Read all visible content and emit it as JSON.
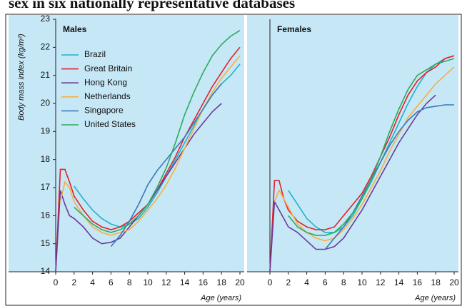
{
  "title": "sex in six nationally representative databases",
  "chart_data": [
    {
      "type": "line",
      "title": "Males",
      "ylabel": "Body mass index (kg/m²)",
      "xlabel": "Age (years)",
      "x": [
        0,
        0.5,
        1,
        1.5,
        2,
        3,
        4,
        5,
        6,
        7,
        8,
        9,
        10,
        11,
        12,
        13,
        14,
        15,
        16,
        17,
        18,
        19,
        20
      ],
      "xlim": [
        0,
        20
      ],
      "xticks": [
        0,
        2,
        4,
        6,
        8,
        10,
        12,
        14,
        16,
        18,
        20
      ],
      "ylim": [
        14,
        23
      ],
      "yticks": [
        14,
        15,
        16,
        17,
        18,
        19,
        20,
        21,
        22,
        23
      ],
      "legend": "upper left",
      "series": [
        {
          "name": "Brazil",
          "color": "#1fb3cc",
          "values": [
            null,
            null,
            null,
            null,
            17.05,
            16.6,
            16.2,
            15.9,
            15.7,
            15.6,
            15.7,
            15.9,
            16.3,
            16.8,
            17.4,
            18.0,
            18.6,
            19.2,
            19.8,
            20.3,
            20.7,
            21.0,
            21.4
          ]
        },
        {
          "name": "Great Britain",
          "color": "#e3202a",
          "values": [
            14,
            17.65,
            17.65,
            17.2,
            16.7,
            16.2,
            15.8,
            15.6,
            15.5,
            15.6,
            15.8,
            16.1,
            16.4,
            16.9,
            17.5,
            18.1,
            18.8,
            19.4,
            20.0,
            20.6,
            21.1,
            21.6,
            22.0
          ]
        },
        {
          "name": "Hong Kong",
          "color": "#6a3a9a",
          "values": [
            14,
            16.9,
            16.4,
            16.0,
            15.9,
            15.6,
            15.2,
            15.0,
            15.05,
            15.2,
            15.6,
            16.0,
            16.4,
            16.9,
            17.4,
            17.9,
            18.4,
            18.9,
            19.3,
            19.7,
            20.0,
            null,
            null
          ]
        },
        {
          "name": "Netherlands",
          "color": "#f5b041",
          "values": [
            null,
            16.5,
            17.2,
            17.0,
            16.5,
            16.0,
            15.6,
            15.4,
            15.3,
            15.4,
            15.5,
            15.8,
            16.2,
            16.6,
            17.1,
            17.7,
            18.4,
            19.1,
            19.8,
            20.4,
            20.9,
            21.3,
            21.7
          ]
        },
        {
          "name": "Singapore",
          "color": "#3a78b8",
          "values": [
            null,
            null,
            null,
            null,
            null,
            null,
            null,
            null,
            14.9,
            15.3,
            15.8,
            16.4,
            17.1,
            17.6,
            18.0,
            18.4,
            18.8,
            19.3,
            19.8,
            20.3,
            20.7,
            null,
            null
          ]
        },
        {
          "name": "United States",
          "color": "#2eaa5a",
          "values": [
            null,
            null,
            null,
            null,
            16.3,
            16.0,
            15.7,
            15.5,
            15.4,
            15.5,
            15.7,
            16.0,
            16.4,
            17.0,
            17.7,
            18.6,
            19.6,
            20.4,
            21.1,
            21.7,
            22.1,
            22.4,
            22.6
          ]
        }
      ]
    },
    {
      "type": "line",
      "title": "Females",
      "xlabel": "Age (years)",
      "x": [
        0,
        0.5,
        1,
        1.5,
        2,
        3,
        4,
        5,
        6,
        7,
        8,
        9,
        10,
        11,
        12,
        13,
        14,
        15,
        16,
        17,
        18,
        19,
        20
      ],
      "xlim": [
        0,
        20
      ],
      "xticks": [
        0,
        2,
        4,
        6,
        8,
        10,
        12,
        14,
        16,
        18,
        20
      ],
      "ylim": [
        14,
        23
      ],
      "series": [
        {
          "color": "#1fb3cc",
          "values": [
            null,
            null,
            null,
            null,
            16.9,
            16.4,
            15.9,
            15.6,
            15.4,
            15.4,
            15.6,
            16.0,
            16.6,
            17.2,
            17.9,
            18.6,
            19.3,
            20.0,
            20.6,
            21.1,
            21.4,
            21.6,
            21.7
          ]
        },
        {
          "color": "#e3202a",
          "values": [
            14,
            17.25,
            17.25,
            16.6,
            16.2,
            15.8,
            15.6,
            15.5,
            15.5,
            15.6,
            16.0,
            16.4,
            16.8,
            17.4,
            18.1,
            18.8,
            19.6,
            20.3,
            20.8,
            21.1,
            21.3,
            21.6,
            21.7
          ]
        },
        {
          "color": "#6a3a9a",
          "values": [
            14,
            16.5,
            16.2,
            15.9,
            15.6,
            15.4,
            15.1,
            14.8,
            14.8,
            14.9,
            15.2,
            15.7,
            16.2,
            16.8,
            17.4,
            18.0,
            18.6,
            19.1,
            19.6,
            20.0,
            20.3,
            null,
            null
          ]
        },
        {
          "color": "#f5b041",
          "values": [
            null,
            16.5,
            16.9,
            16.6,
            16.3,
            15.7,
            15.4,
            15.2,
            15.1,
            15.2,
            15.5,
            15.9,
            16.4,
            17.0,
            17.6,
            18.3,
            18.9,
            19.5,
            19.9,
            20.3,
            20.7,
            21.0,
            21.3
          ]
        },
        {
          "color": "#3a78b8",
          "values": [
            null,
            null,
            null,
            null,
            null,
            null,
            null,
            null,
            14.8,
            15.2,
            15.6,
            16.1,
            16.7,
            17.3,
            17.9,
            18.5,
            19.0,
            19.4,
            19.7,
            19.85,
            19.9,
            19.95,
            19.95
          ]
        },
        {
          "color": "#2eaa5a",
          "values": [
            null,
            null,
            null,
            null,
            16.0,
            15.6,
            15.4,
            15.3,
            15.3,
            15.4,
            15.7,
            16.1,
            16.6,
            17.3,
            18.1,
            19.0,
            19.8,
            20.5,
            21.0,
            21.2,
            21.4,
            21.5,
            21.6
          ]
        }
      ]
    }
  ]
}
